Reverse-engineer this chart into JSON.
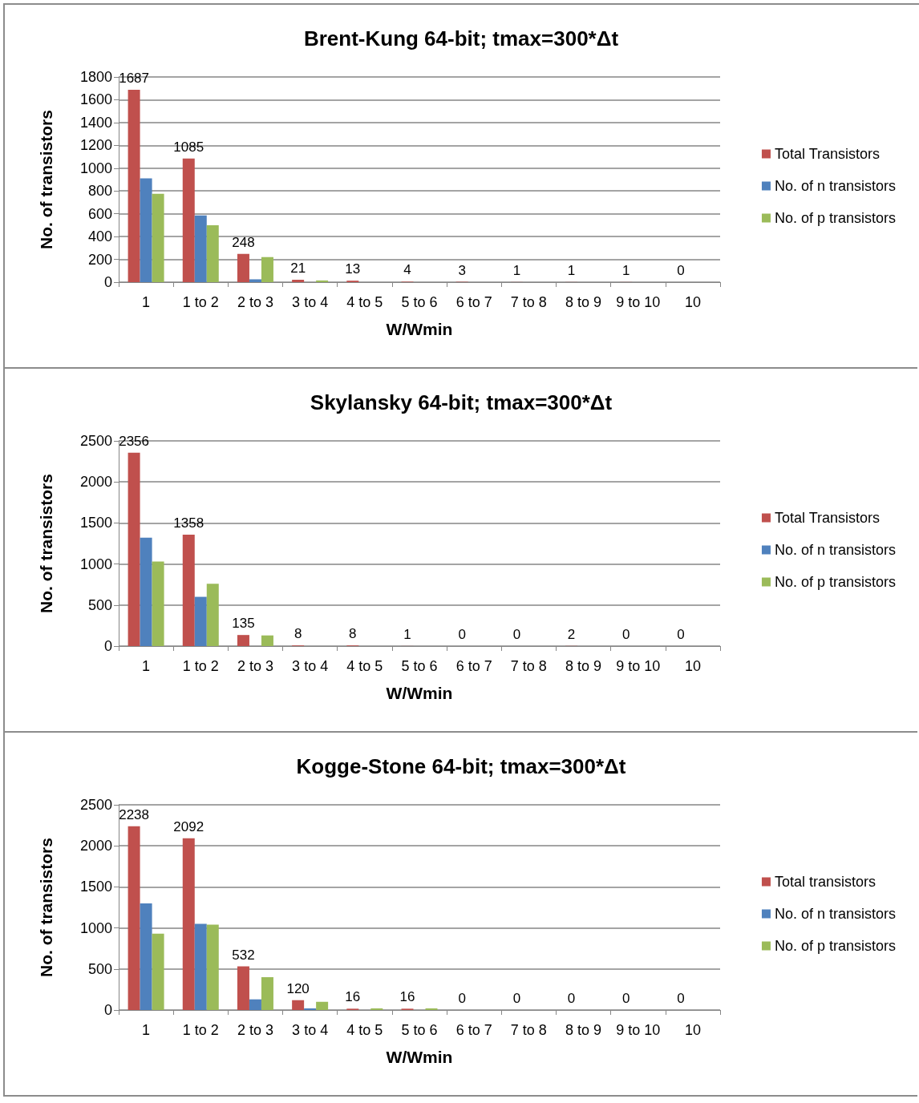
{
  "chart_data": [
    {
      "type": "bar",
      "title": "Brent-Kung 64-bit; tmax=300*Δt",
      "xlabel": "W/Wmin",
      "ylabel": "No. of transistors",
      "categories": [
        "1",
        "1 to 2",
        "2 to 3",
        "3 to 4",
        "4 to 5",
        "5 to 6",
        "6 to 7",
        "7 to 8",
        "8 to 9",
        "9 to 10",
        "10"
      ],
      "ylim": [
        0,
        1800
      ],
      "yticks": [
        0,
        200,
        400,
        600,
        800,
        1000,
        1200,
        1400,
        1600,
        1800
      ],
      "grid": "y",
      "legend": "right",
      "series": [
        {
          "name": "Total Transistors",
          "color": "#c0504d",
          "values": [
            1687,
            1085,
            248,
            21,
            13,
            4,
            3,
            1,
            1,
            1,
            0
          ],
          "value_labels": [
            "1687",
            "1085",
            "248",
            "21",
            "13",
            "4",
            "3",
            "1",
            "1",
            "1",
            "0"
          ]
        },
        {
          "name": "No. of n transistors",
          "color": "#4f81bd",
          "values": [
            910,
            585,
            25,
            0,
            0,
            0,
            0,
            0,
            0,
            0,
            0
          ]
        },
        {
          "name": "No. of p transistors",
          "color": "#9bbb59",
          "values": [
            775,
            500,
            220,
            15,
            0,
            0,
            0,
            0,
            0,
            0,
            0
          ]
        }
      ]
    },
    {
      "type": "bar",
      "title": "Skylansky 64-bit; tmax=300*Δt",
      "xlabel": "W/Wmin",
      "ylabel": "No. of transistors",
      "categories": [
        "1",
        "1 to 2",
        "2 to 3",
        "3 to 4",
        "4 to 5",
        "5 to 6",
        "6 to 7",
        "7 to 8",
        "8 to 9",
        "9 to 10",
        "10"
      ],
      "ylim": [
        0,
        2500
      ],
      "yticks": [
        0,
        500,
        1000,
        1500,
        2000,
        2500
      ],
      "grid": "y",
      "legend": "right",
      "series": [
        {
          "name": "Total Transistors",
          "color": "#c0504d",
          "values": [
            2356,
            1358,
            135,
            8,
            8,
            1,
            0,
            0,
            2,
            0,
            0
          ],
          "value_labels": [
            "2356",
            "1358",
            "135",
            "8",
            "8",
            "1",
            "0",
            "0",
            "2",
            "0",
            "0"
          ]
        },
        {
          "name": "No. of n transistors",
          "color": "#4f81bd",
          "values": [
            1320,
            600,
            0,
            0,
            0,
            0,
            0,
            0,
            0,
            0,
            0
          ]
        },
        {
          "name": "No. of p transistors",
          "color": "#9bbb59",
          "values": [
            1030,
            760,
            130,
            0,
            0,
            0,
            0,
            0,
            0,
            0,
            0
          ]
        }
      ]
    },
    {
      "type": "bar",
      "title": "Kogge-Stone 64-bit; tmax=300*Δt",
      "xlabel": "W/Wmin",
      "ylabel": "No. of transistors",
      "categories": [
        "1",
        "1 to 2",
        "2 to 3",
        "3 to 4",
        "4 to 5",
        "5 to 6",
        "6 to 7",
        "7 to 8",
        "8 to 9",
        "9 to 10",
        "10"
      ],
      "ylim": [
        0,
        2500
      ],
      "yticks": [
        0,
        500,
        1000,
        1500,
        2000,
        2500
      ],
      "grid": "y",
      "legend": "right",
      "series": [
        {
          "name": "Total transistors",
          "color": "#c0504d",
          "values": [
            2238,
            2092,
            532,
            120,
            16,
            16,
            0,
            0,
            0,
            0,
            0
          ],
          "value_labels": [
            "2238",
            "2092",
            "532",
            "120",
            "16",
            "16",
            "0",
            "0",
            "0",
            "0",
            "0"
          ]
        },
        {
          "name": "No. of n transistors",
          "color": "#4f81bd",
          "values": [
            1300,
            1050,
            130,
            20,
            0,
            0,
            0,
            0,
            0,
            0,
            0
          ]
        },
        {
          "name": "No. of p transistors",
          "color": "#9bbb59",
          "values": [
            930,
            1040,
            400,
            100,
            20,
            20,
            0,
            0,
            0,
            0,
            0
          ]
        }
      ]
    }
  ]
}
